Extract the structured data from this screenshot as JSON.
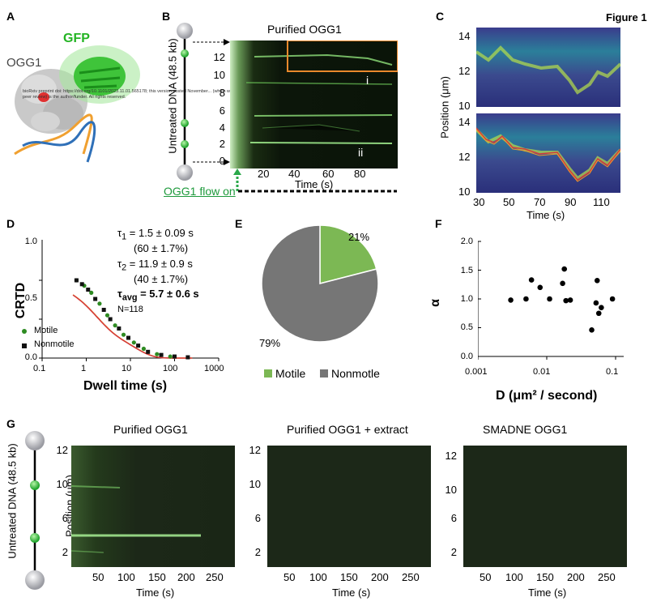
{
  "figure_label": "Figure 1",
  "watermark": "bioRxiv preprint doi: https://doi.org/10.1101/2023.11.01.565178; this version posted November... (which was not certified by peer review) is the author/funder. All rights reserved.",
  "panelA": {
    "label": "A",
    "ogg1": "OGG1",
    "gfp": "GFP"
  },
  "panelB": {
    "label": "B",
    "title": "Purified OGG1",
    "ylabel": "Untreated DNA (48.5 kb)",
    "xlabel": "Time (s)",
    "yticks": [
      "12",
      "10",
      "8",
      "6",
      "4",
      "2",
      "0"
    ],
    "xticks": [
      "20",
      "40",
      "60",
      "80"
    ],
    "roi_i": "i",
    "roi_ii": "ii",
    "flow": "OGG1 flow on"
  },
  "panelC": {
    "label": "C",
    "ylabel": "Position (μm)",
    "xlabel": "Time (s)",
    "yticks_top": [
      "14",
      "12",
      "10"
    ],
    "yticks_bottom": [
      "14",
      "12",
      "10"
    ],
    "xticks": [
      "30",
      "50",
      "70",
      "90",
      "110"
    ]
  },
  "panelD": {
    "label": "D",
    "ylabel": "CRTD",
    "xlabel": "Dwell time (s)",
    "yticks": [
      "1.0",
      "0.5",
      "0.0"
    ],
    "xticks": [
      "0.1",
      "1",
      "10",
      "100",
      "1000"
    ],
    "tau1_sym": "τ",
    "tau1_sub": "1",
    "tau1_val": " = 1.5 ± 0.09 s",
    "tau1_pct": "(60 ± 1.7%)",
    "tau2_sym": "τ",
    "tau2_sub": "2",
    "tau2_val": " = 11.9 ± 0.9 s",
    "tau2_pct": "(40 ± 1.7%)",
    "tauavg_sym": "τ",
    "tauavg_sub": "avg",
    "tauavg_val": " = 5.7 ± 0.6 s",
    "n": "N=118",
    "legend_motile": "Motile",
    "legend_nonmotile": "Nonmotile",
    "colors": {
      "motile": "#2e8b22",
      "nonmotile": "#111111",
      "fit1": "#e8892b",
      "fit2": "#d43b3b"
    }
  },
  "panelE": {
    "label": "E",
    "motile_pct": "21%",
    "nonmotile_pct": "79%",
    "legend_motile": "Motile",
    "legend_nonmotile": "Nonmotle",
    "colors": {
      "motile": "#7cb854",
      "nonmotile": "#767676"
    }
  },
  "panelF": {
    "label": "F",
    "ylabel": "α",
    "xlabel": "D (μm² / second)",
    "yticks": [
      "2.0",
      "1.5",
      "1.0",
      "0.5",
      "0.0"
    ],
    "xticks": [
      "0.001",
      "0.01",
      "0.1"
    ]
  },
  "panelG": {
    "label": "G",
    "ylabel": "Untreated DNA (48.5 kb)",
    "poslabel": "Position (μm)",
    "xlabel": "Time (s)",
    "titles": [
      "Purified OGG1",
      "Purified OGG1 + extract",
      "SMADNE OGG1"
    ],
    "yticks": [
      "12",
      "10",
      "6",
      "2"
    ],
    "xticks": [
      "50",
      "100",
      "150",
      "200",
      "250"
    ]
  },
  "chart_data": [
    {
      "type": "scatter",
      "panel": "D",
      "title": "",
      "xlabel": "Dwell time (s)",
      "ylabel": "CRTD",
      "xscale": "log",
      "xlim": [
        0.1,
        1000
      ],
      "ylim": [
        0,
        1.0
      ],
      "series": [
        {
          "name": "Motile",
          "x": [
            0.6,
            0.9,
            1.3,
            2.0,
            3.0,
            4.5,
            7.0,
            12,
            20,
            40,
            80
          ],
          "y": [
            1.0,
            0.93,
            0.84,
            0.7,
            0.55,
            0.42,
            0.3,
            0.2,
            0.12,
            0.05,
            0.02
          ]
        },
        {
          "name": "Nonmotile",
          "x": [
            0.6,
            0.8,
            1.1,
            1.6,
            2.5,
            3.5,
            5.5,
            9,
            15,
            25,
            50,
            100,
            200
          ],
          "y": [
            1.0,
            0.95,
            0.88,
            0.76,
            0.62,
            0.5,
            0.38,
            0.26,
            0.16,
            0.08,
            0.04,
            0.02,
            0.01
          ]
        }
      ]
    },
    {
      "type": "pie",
      "panel": "E",
      "categories": [
        "Motile",
        "Nonmotle"
      ],
      "values": [
        21,
        79
      ]
    },
    {
      "type": "scatter",
      "panel": "F",
      "xlabel": "D (μm² / second)",
      "ylabel": "α",
      "xscale": "log",
      "xlim": [
        0.001,
        0.1
      ],
      "ylim": [
        0,
        2.0
      ],
      "x": [
        0.003,
        0.005,
        0.006,
        0.008,
        0.011,
        0.017,
        0.018,
        0.019,
        0.022,
        0.045,
        0.052,
        0.054,
        0.057,
        0.062,
        0.09
      ],
      "y": [
        0.98,
        1.0,
        1.33,
        1.2,
        1.0,
        1.27,
        1.52,
        0.97,
        0.98,
        0.46,
        0.93,
        1.32,
        0.75,
        0.85,
        1.0
      ]
    }
  ]
}
